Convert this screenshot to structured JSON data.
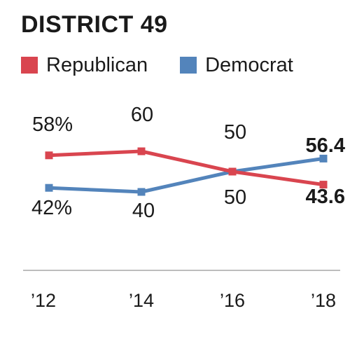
{
  "chart_data": {
    "type": "line",
    "title": "DISTRICT 49",
    "categories": [
      "’12",
      "’14",
      "’16",
      "’18"
    ],
    "series": [
      {
        "name": "Republican",
        "color": "#d9454f",
        "values": [
          58,
          60,
          50,
          43.6
        ],
        "labels": [
          "58%",
          "60",
          "50",
          "43.6"
        ]
      },
      {
        "name": "Democrat",
        "color": "#5384bb",
        "values": [
          42,
          40,
          50,
          56.4
        ],
        "labels": [
          "42%",
          "40",
          "50",
          "56.4"
        ]
      }
    ],
    "legend": "top-left",
    "grid": false
  }
}
